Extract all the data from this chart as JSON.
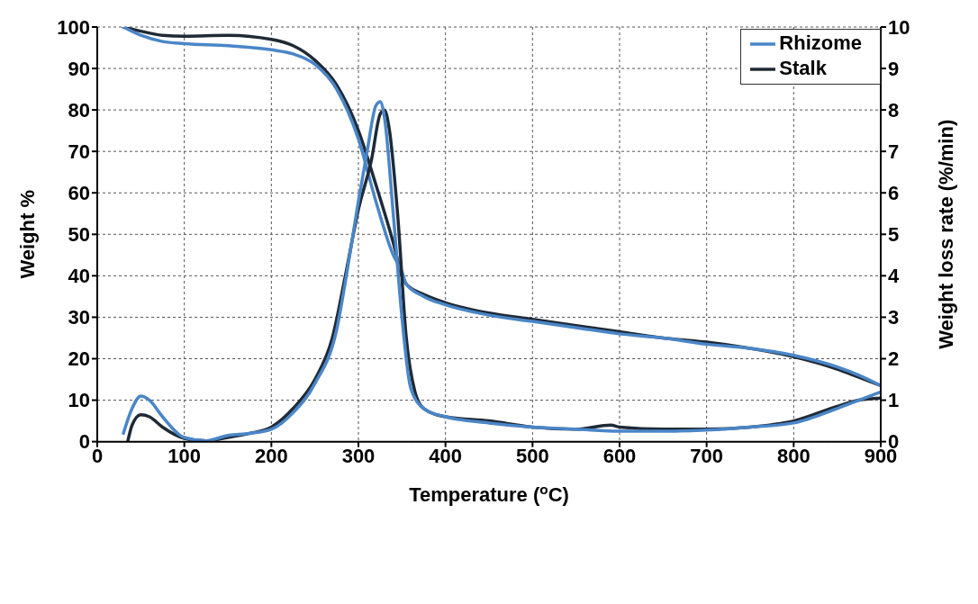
{
  "chart_data": {
    "type": "line",
    "xlabel": "Temperature ($^{o}$C)",
    "ylabel": "Weight %",
    "y2label": "Weight loss rate (%/min)",
    "xlim": [
      0,
      900
    ],
    "xticks": [
      0,
      100,
      200,
      300,
      400,
      500,
      600,
      700,
      800,
      900
    ],
    "ylim": [
      0,
      100
    ],
    "yticks": [
      0,
      10,
      20,
      30,
      40,
      50,
      60,
      70,
      80,
      90,
      100
    ],
    "y2lim": [
      0,
      10
    ],
    "y2ticks": [
      0,
      1,
      2,
      3,
      4,
      5,
      6,
      7,
      8,
      9,
      10
    ],
    "grid": true,
    "legend": "top right",
    "line_style": "solid",
    "marker": "none",
    "series": [
      {
        "name": "Stalk",
        "color": "#1f2a36",
        "x": [
          30,
          50,
          75,
          100,
          150,
          200,
          225,
          250,
          275,
          300,
          320,
          340,
          350,
          355,
          375,
          400,
          450,
          500,
          550,
          600,
          650,
          700,
          750,
          800,
          850,
          875,
          900
        ],
        "values": [
          100,
          99,
          98,
          97.8,
          98,
          97,
          95.5,
          92,
          86,
          75,
          62,
          48,
          40,
          38,
          35.5,
          33.5,
          31,
          29.5,
          28,
          26.5,
          25,
          24,
          22.5,
          20.5,
          17.5,
          15.5,
          13.5
        ]
      },
      {
        "name": "Rhizome",
        "color": "#4a86c8",
        "x": [
          30,
          50,
          75,
          100,
          150,
          200,
          225,
          250,
          275,
          300,
          320,
          340,
          350,
          355,
          375,
          400,
          450,
          500,
          550,
          600,
          650,
          700,
          750,
          800,
          850,
          875,
          900
        ],
        "values": [
          100,
          98,
          96.5,
          96,
          95.5,
          94.5,
          93.5,
          91,
          85,
          73,
          58,
          45,
          41,
          38,
          35,
          33,
          30.5,
          29,
          27.5,
          26,
          25,
          23.5,
          22.5,
          20.8,
          18,
          16,
          13.5
        ]
      },
      {
        "color": "#1f2a36",
        "axis": "y2",
        "x": [
          35,
          40,
          50,
          60,
          75,
          100,
          125,
          150,
          175,
          200,
          225,
          250,
          270,
          285,
          300,
          315,
          325,
          330,
          335,
          345,
          355,
          365,
          375,
          400,
          450,
          500,
          550,
          590,
          600,
          650,
          700,
          750,
          800,
          850,
          875,
          900
        ],
        "values": [
          0,
          0.4,
          0.65,
          0.6,
          0.35,
          0.08,
          0.02,
          0.1,
          0.2,
          0.35,
          0.8,
          1.5,
          2.5,
          4,
          5.6,
          6.8,
          7.9,
          8,
          7.6,
          5.5,
          2.5,
          1.2,
          0.8,
          0.6,
          0.5,
          0.35,
          0.3,
          0.4,
          0.35,
          0.3,
          0.3,
          0.35,
          0.5,
          0.85,
          1,
          1.05
        ]
      },
      {
        "color": "#4a86c8",
        "axis": "y2",
        "x": [
          30,
          40,
          50,
          60,
          75,
          100,
          125,
          150,
          175,
          200,
          225,
          250,
          275,
          290,
          300,
          310,
          320,
          325,
          330,
          340,
          350,
          360,
          375,
          400,
          450,
          500,
          550,
          600,
          650,
          700,
          750,
          800,
          850,
          875,
          900
        ],
        "values": [
          0.2,
          0.8,
          1.1,
          1,
          0.6,
          0.1,
          0.02,
          0.15,
          0.2,
          0.3,
          0.7,
          1.4,
          2.7,
          4.5,
          5.8,
          7,
          8.1,
          8.2,
          7.8,
          5.5,
          3,
          1.3,
          0.8,
          0.6,
          0.45,
          0.35,
          0.3,
          0.25,
          0.25,
          0.28,
          0.35,
          0.45,
          0.8,
          1,
          1.2
        ]
      }
    ]
  }
}
